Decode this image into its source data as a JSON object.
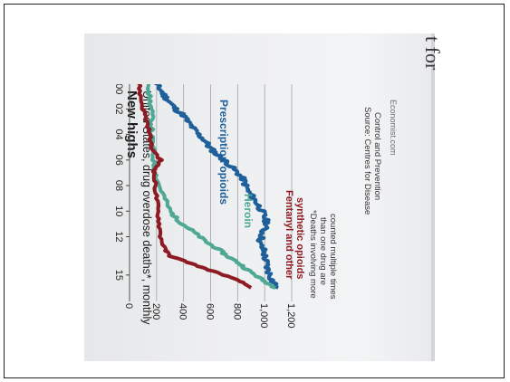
{
  "page_partial_text": "t for hea",
  "chart_data": {
    "type": "line",
    "title": "New highs",
    "subtitle": "United States, drug overdose deaths*, monthly",
    "xlabel": "",
    "ylabel": "",
    "x_ticks": [
      "2000",
      "02",
      "04",
      "06",
      "08",
      "10",
      "12",
      "15"
    ],
    "y_ticks": [
      0,
      200,
      400,
      600,
      800,
      "1,000",
      "1,200"
    ],
    "ylim": [
      0,
      1200
    ],
    "xlim": [
      1999,
      2016.5
    ],
    "grid": true,
    "orientation": "rotated-90-clockwise",
    "series": [
      {
        "name": "Prescription opioids",
        "color": "#1f5f9a",
        "points": [
          [
            1999.2,
            150
          ],
          [
            1999.5,
            170
          ],
          [
            2000,
            190
          ],
          [
            2000.5,
            230
          ],
          [
            2001,
            260
          ],
          [
            2001.5,
            300
          ],
          [
            2002,
            340
          ],
          [
            2002.5,
            400
          ],
          [
            2003,
            430
          ],
          [
            2003.5,
            470
          ],
          [
            2004,
            510
          ],
          [
            2004.5,
            560
          ],
          [
            2005,
            590
          ],
          [
            2005.5,
            640
          ],
          [
            2006,
            700
          ],
          [
            2006.5,
            750
          ],
          [
            2007,
            800
          ],
          [
            2007.5,
            840
          ],
          [
            2008,
            860
          ],
          [
            2008.5,
            880
          ],
          [
            2009,
            920
          ],
          [
            2009.5,
            950
          ],
          [
            2010,
            980
          ],
          [
            2010.5,
            1000
          ],
          [
            2011,
            1020
          ],
          [
            2011.5,
            990
          ],
          [
            2012,
            980
          ],
          [
            2012.5,
            960
          ],
          [
            2013,
            990
          ],
          [
            2013.5,
            1000
          ],
          [
            2014,
            1010
          ],
          [
            2014.5,
            1020
          ],
          [
            2015,
            1040
          ],
          [
            2015.5,
            1060
          ],
          [
            2016,
            1100
          ]
        ]
      },
      {
        "name": "Heroin",
        "color": "#4fa894",
        "points": [
          [
            1999.2,
            150
          ],
          [
            2000,
            150
          ],
          [
            2001,
            145
          ],
          [
            2002,
            160
          ],
          [
            2003,
            165
          ],
          [
            2004,
            160
          ],
          [
            2005,
            170
          ],
          [
            2006,
            180
          ],
          [
            2007,
            190
          ],
          [
            2008,
            220
          ],
          [
            2009,
            260
          ],
          [
            2010,
            300
          ],
          [
            2010.5,
            340
          ],
          [
            2011,
            390
          ],
          [
            2011.5,
            460
          ],
          [
            2012,
            520
          ],
          [
            2012.5,
            580
          ],
          [
            2013,
            660
          ],
          [
            2013.5,
            720
          ],
          [
            2014,
            800
          ],
          [
            2014.5,
            860
          ],
          [
            2015,
            930
          ],
          [
            2015.5,
            1000
          ],
          [
            2016,
            1080
          ]
        ]
      },
      {
        "name": "Fentanyl and other synthetic opioids",
        "color": "#8e1b24",
        "points": [
          [
            1999.2,
            60
          ],
          [
            2000,
            70
          ],
          [
            2001,
            80
          ],
          [
            2002,
            100
          ],
          [
            2003,
            130
          ],
          [
            2004,
            150
          ],
          [
            2005,
            160
          ],
          [
            2006,
            230
          ],
          [
            2006.5,
            200
          ],
          [
            2007,
            180
          ],
          [
            2008,
            190
          ],
          [
            2009,
            200
          ],
          [
            2010,
            210
          ],
          [
            2011,
            220
          ],
          [
            2012,
            230
          ],
          [
            2013,
            260
          ],
          [
            2013.5,
            300
          ],
          [
            2014,
            430
          ],
          [
            2014.5,
            560
          ],
          [
            2015,
            700
          ],
          [
            2015.5,
            820
          ],
          [
            2016,
            900
          ]
        ]
      }
    ],
    "footnote": "*Deaths involving more than one drug are counted multiple times",
    "source": "Source: Centres for Disease Control and Prevention",
    "credit": "Economist.com"
  }
}
